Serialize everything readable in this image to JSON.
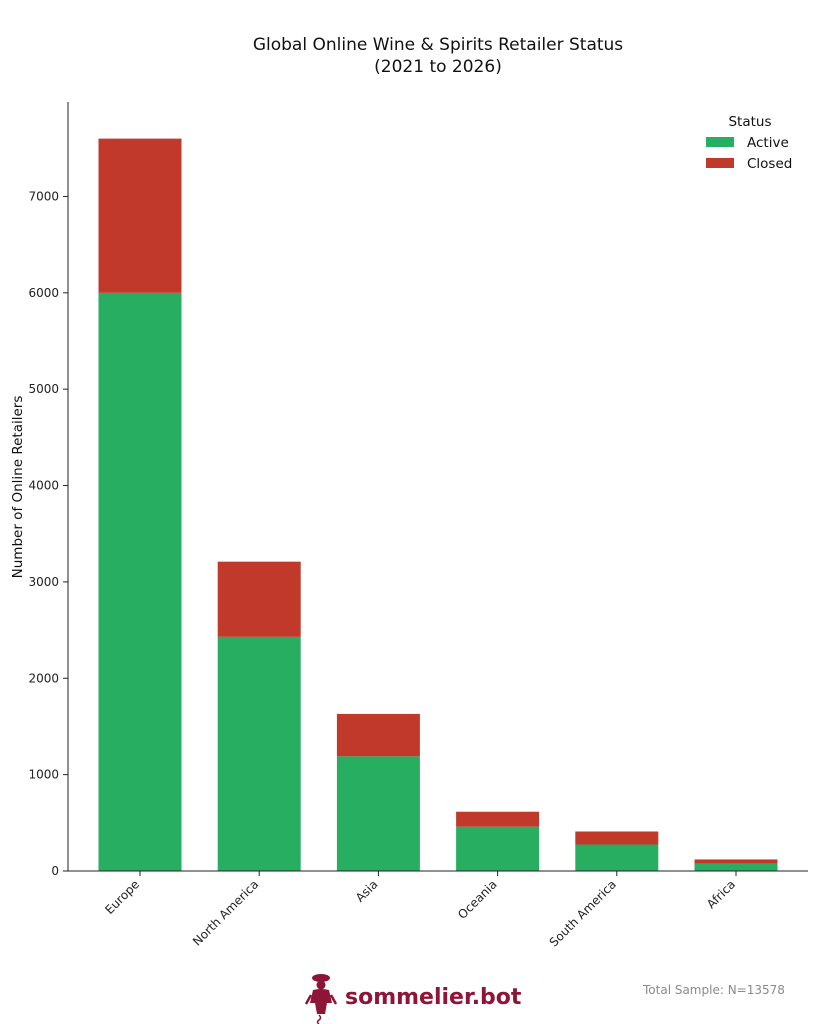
{
  "chart_data": {
    "type": "bar",
    "stacked": true,
    "title": "Global Online Wine & Spirits Retailer Status",
    "subtitle": "(2021 to 2026)",
    "xlabel": "",
    "ylabel": "Number of Online Retailers",
    "categories": [
      "Europe",
      "North America",
      "Asia",
      "Oceania",
      "South America",
      "Africa"
    ],
    "series": [
      {
        "name": "Active",
        "color": "#27ae60",
        "values": [
          6000,
          2430,
          1190,
          460,
          275,
          75
        ]
      },
      {
        "name": "Closed",
        "color": "#c0392b",
        "values": [
          1600,
          780,
          440,
          155,
          135,
          45
        ]
      }
    ],
    "yticks": [
      0,
      1000,
      2000,
      3000,
      4000,
      5000,
      6000,
      7000
    ],
    "ylim": [
      0,
      7980
    ],
    "legend": {
      "title": "Status",
      "placement": "top-right"
    },
    "grid": false
  },
  "footer": {
    "brand": "sommelier.bot",
    "brand_icon": "sommelier-figure-icon",
    "sample_text": "Total Sample: N=13578"
  }
}
